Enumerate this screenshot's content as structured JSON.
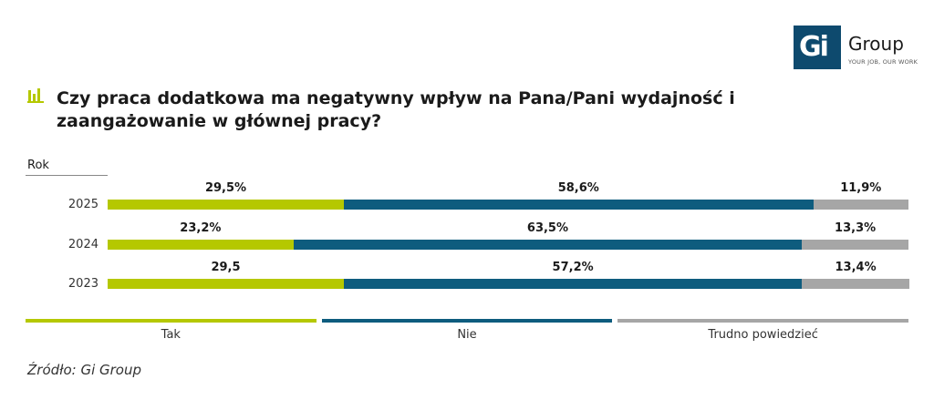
{
  "brand": {
    "logo_mark": "Gi",
    "logo_word": "Group",
    "tagline": "YOUR JOB, OUR WORK",
    "color": "#0e4a6e"
  },
  "title_icon": "bar-chart-icon",
  "chart_data": {
    "type": "bar",
    "stacked": true,
    "orientation": "horizontal",
    "title": "Czy praca dodatkowa ma negatywny wpływ na Pana/Pani wydajność i zaangażowanie w głównej pracy?",
    "ylabel": "Rok",
    "categories": [
      "2025",
      "2024",
      "2023"
    ],
    "series": [
      {
        "name": "Tak",
        "color": "#b5c800",
        "values": [
          29.5,
          23.2,
          29.5
        ],
        "labels": [
          "29,5%",
          "23,2%",
          "29,5"
        ]
      },
      {
        "name": "Nie",
        "color": "#0e5c7e",
        "values": [
          58.6,
          63.5,
          57.2
        ],
        "labels": [
          "58,6%",
          "63,5%",
          "57,2%"
        ]
      },
      {
        "name": "Trudno powiedzieć",
        "color": "#a6a6a6",
        "values": [
          11.9,
          13.3,
          13.4
        ],
        "labels": [
          "11,9%",
          "13,3%",
          "13,4%"
        ]
      }
    ],
    "xlim": [
      0,
      100
    ],
    "legend_position": "bottom"
  },
  "source": "Źródło: Gi Group"
}
